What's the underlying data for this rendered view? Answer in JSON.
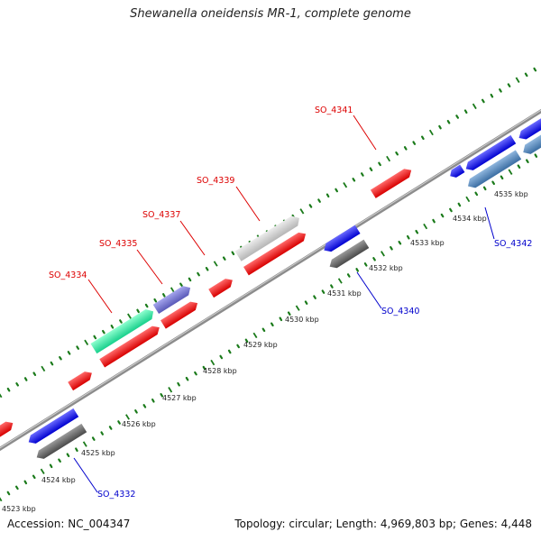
{
  "title": "Shewanella oneidensis MR-1, complete genome",
  "footer": {
    "accession": "Accession: NC_004347",
    "summary": "Topology: circular; Length: 4,969,803 bp; Genes: 4,448"
  },
  "ticks": [
    "4523 kbp",
    "4524 kbp",
    "4525 kbp",
    "4526 kbp",
    "4527 kbp",
    "4528 kbp",
    "4529 kbp",
    "4530 kbp",
    "4531 kbp",
    "4532 kbp",
    "4533 kbp",
    "4534 kbp",
    "4535 kbp"
  ],
  "gene_labels": {
    "so4334": "SO_4334",
    "so4335": "SO_4335",
    "so4337": "SO_4337",
    "so4339": "SO_4339",
    "so4341": "SO_4341",
    "so4332": "SO_4332",
    "so4340": "SO_4340",
    "so4342": "SO_4342"
  },
  "colors": {
    "forward_gene": "#ff1a1a",
    "reverse_gene": "#1f1fff",
    "forward_label": "#dd0000",
    "reverse_label": "#0000cc",
    "backbone": "#8c8c8c",
    "tick_marks": "#1a7a1a"
  }
}
